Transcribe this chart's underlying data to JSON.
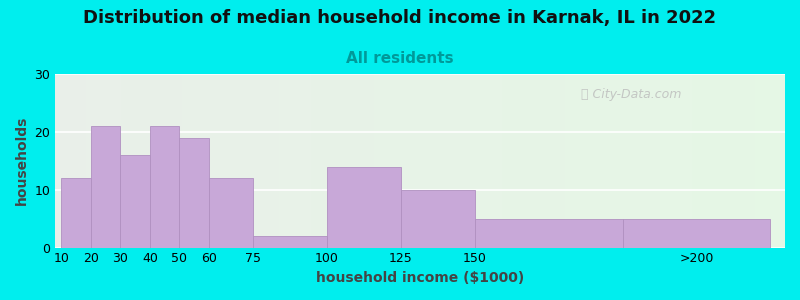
{
  "title": "Distribution of median household income in Karnak, IL in 2022",
  "subtitle": "All residents",
  "xlabel": "household income ($1000)",
  "ylabel": "households",
  "background_color": "#00EEEE",
  "bar_color": "#c8a8d8",
  "bar_edge_color": "#b090c0",
  "values": [
    12,
    21,
    16,
    21,
    19,
    12,
    2,
    14,
    10,
    5,
    5
  ],
  "bar_lefts": [
    10,
    20,
    30,
    40,
    50,
    60,
    75,
    100,
    125,
    150,
    200
  ],
  "bar_widths": [
    10,
    10,
    10,
    10,
    10,
    15,
    25,
    25,
    25,
    50,
    50
  ],
  "xtick_positions": [
    10,
    20,
    30,
    40,
    50,
    60,
    75,
    100,
    125,
    150,
    225
  ],
  "xtick_labels": [
    "10",
    "20",
    "30",
    "40",
    "50",
    "60",
    "75",
    "100",
    "125",
    "150",
    ">200"
  ],
  "ylim": [
    0,
    30
  ],
  "yticks": [
    0,
    10,
    20,
    30
  ],
  "xlim": [
    8,
    255
  ],
  "watermark": "City-Data.com",
  "title_fontsize": 13,
  "subtitle_fontsize": 11,
  "axis_label_fontsize": 10,
  "tick_fontsize": 9
}
